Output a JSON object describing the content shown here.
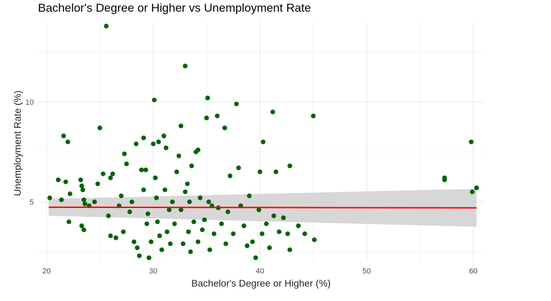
{
  "chart_data": {
    "type": "scatter",
    "title": "Bachelor's Degree or Higher vs Unemployment Rate",
    "xlabel": "Bachelor's Degree or Higher (%)",
    "ylabel": "Unemployment Rate (%)",
    "xlim": [
      19.2,
      61.0
    ],
    "ylim": [
      2.0,
      14.0
    ],
    "x_ticks": [
      20,
      30,
      40,
      50,
      60
    ],
    "x_tick_labels": [
      "20",
      "30",
      "40",
      "50",
      "60"
    ],
    "y_ticks": [
      5,
      10
    ],
    "y_tick_labels": [
      "5",
      "10"
    ],
    "grid": true,
    "legend": "none",
    "colors": {
      "points": "#006400",
      "trend": "#ff0000",
      "band": "#d3d3d3",
      "grid": "#ebebeb"
    },
    "trend": {
      "x": [
        20.2,
        60.3
      ],
      "y": [
        4.73,
        4.7
      ],
      "ci_lower_at_ends": [
        4.3,
        3.75
      ],
      "ci_upper_at_ends": [
        5.15,
        5.65
      ]
    },
    "points": [
      {
        "x": 20.3,
        "y": 5.2
      },
      {
        "x": 21.1,
        "y": 6.1
      },
      {
        "x": 21.6,
        "y": 8.3
      },
      {
        "x": 22.0,
        "y": 8.0
      },
      {
        "x": 21.8,
        "y": 6.0
      },
      {
        "x": 22.2,
        "y": 5.4
      },
      {
        "x": 21.4,
        "y": 5.1
      },
      {
        "x": 22.1,
        "y": 4.0
      },
      {
        "x": 23.2,
        "y": 6.1
      },
      {
        "x": 23.3,
        "y": 5.8
      },
      {
        "x": 23.4,
        "y": 5.6
      },
      {
        "x": 23.5,
        "y": 5.1
      },
      {
        "x": 23.3,
        "y": 3.8
      },
      {
        "x": 23.5,
        "y": 3.6
      },
      {
        "x": 23.6,
        "y": 4.9
      },
      {
        "x": 24.0,
        "y": 4.8
      },
      {
        "x": 24.5,
        "y": 5.0
      },
      {
        "x": 24.8,
        "y": 5.9
      },
      {
        "x": 25.0,
        "y": 8.7
      },
      {
        "x": 25.3,
        "y": 6.4
      },
      {
        "x": 25.6,
        "y": 13.8
      },
      {
        "x": 26.0,
        "y": 6.2
      },
      {
        "x": 26.2,
        "y": 6.4
      },
      {
        "x": 25.8,
        "y": 4.3
      },
      {
        "x": 26.0,
        "y": 3.3
      },
      {
        "x": 26.5,
        "y": 3.2
      },
      {
        "x": 26.8,
        "y": 4.8
      },
      {
        "x": 27.0,
        "y": 5.3
      },
      {
        "x": 27.2,
        "y": 3.5
      },
      {
        "x": 27.3,
        "y": 7.4
      },
      {
        "x": 27.5,
        "y": 6.9
      },
      {
        "x": 27.8,
        "y": 4.5
      },
      {
        "x": 28.0,
        "y": 5.0
      },
      {
        "x": 28.2,
        "y": 3.0
      },
      {
        "x": 28.5,
        "y": 2.7
      },
      {
        "x": 28.4,
        "y": 7.9
      },
      {
        "x": 28.7,
        "y": 2.3
      },
      {
        "x": 28.9,
        "y": 6.6
      },
      {
        "x": 29.1,
        "y": 5.6
      },
      {
        "x": 29.1,
        "y": 8.2
      },
      {
        "x": 29.3,
        "y": 6.6
      },
      {
        "x": 29.4,
        "y": 3.9
      },
      {
        "x": 29.5,
        "y": 4.4
      },
      {
        "x": 29.6,
        "y": 2.2
      },
      {
        "x": 29.8,
        "y": 3.0
      },
      {
        "x": 30.0,
        "y": 7.9
      },
      {
        "x": 30.1,
        "y": 10.1
      },
      {
        "x": 30.2,
        "y": 6.2
      },
      {
        "x": 30.3,
        "y": 5.2
      },
      {
        "x": 30.4,
        "y": 4.0
      },
      {
        "x": 30.5,
        "y": 8.0
      },
      {
        "x": 30.6,
        "y": 3.3
      },
      {
        "x": 30.8,
        "y": 2.6
      },
      {
        "x": 31.0,
        "y": 8.3
      },
      {
        "x": 31.1,
        "y": 5.6
      },
      {
        "x": 31.2,
        "y": 7.7
      },
      {
        "x": 31.3,
        "y": 3.5
      },
      {
        "x": 31.5,
        "y": 4.6
      },
      {
        "x": 31.6,
        "y": 2.9
      },
      {
        "x": 31.8,
        "y": 5.0
      },
      {
        "x": 32.0,
        "y": 3.9
      },
      {
        "x": 32.2,
        "y": 6.5
      },
      {
        "x": 32.4,
        "y": 7.3
      },
      {
        "x": 32.6,
        "y": 8.8
      },
      {
        "x": 32.6,
        "y": 4.6
      },
      {
        "x": 32.8,
        "y": 2.9
      },
      {
        "x": 33.0,
        "y": 5.5
      },
      {
        "x": 33.0,
        "y": 11.8
      },
      {
        "x": 33.2,
        "y": 5.9
      },
      {
        "x": 33.3,
        "y": 3.5
      },
      {
        "x": 33.4,
        "y": 5.0
      },
      {
        "x": 33.5,
        "y": 2.5
      },
      {
        "x": 33.6,
        "y": 6.8
      },
      {
        "x": 33.8,
        "y": 4.0
      },
      {
        "x": 34.0,
        "y": 7.5
      },
      {
        "x": 34.2,
        "y": 7.6
      },
      {
        "x": 34.2,
        "y": 3.0
      },
      {
        "x": 34.4,
        "y": 5.2
      },
      {
        "x": 34.6,
        "y": 3.6
      },
      {
        "x": 34.8,
        "y": 4.1
      },
      {
        "x": 35.0,
        "y": 9.2
      },
      {
        "x": 35.1,
        "y": 10.2
      },
      {
        "x": 35.2,
        "y": 5.0
      },
      {
        "x": 35.3,
        "y": 2.6
      },
      {
        "x": 35.5,
        "y": 4.8
      },
      {
        "x": 35.7,
        "y": 3.4
      },
      {
        "x": 36.0,
        "y": 9.3
      },
      {
        "x": 36.1,
        "y": 4.7
      },
      {
        "x": 36.4,
        "y": 3.9
      },
      {
        "x": 36.7,
        "y": 8.7
      },
      {
        "x": 36.8,
        "y": 2.9
      },
      {
        "x": 37.0,
        "y": 4.5
      },
      {
        "x": 37.2,
        "y": 6.3
      },
      {
        "x": 37.5,
        "y": 3.4
      },
      {
        "x": 37.8,
        "y": 9.9
      },
      {
        "x": 38.0,
        "y": 6.7
      },
      {
        "x": 38.2,
        "y": 4.8
      },
      {
        "x": 38.5,
        "y": 3.8
      },
      {
        "x": 38.8,
        "y": 2.8
      },
      {
        "x": 39.0,
        "y": 5.3
      },
      {
        "x": 39.3,
        "y": 3.0
      },
      {
        "x": 39.6,
        "y": 2.2
      },
      {
        "x": 39.9,
        "y": 4.6
      },
      {
        "x": 40.0,
        "y": 6.5
      },
      {
        "x": 40.2,
        "y": 3.4
      },
      {
        "x": 40.3,
        "y": 8.0
      },
      {
        "x": 40.6,
        "y": 3.9
      },
      {
        "x": 40.9,
        "y": 2.7
      },
      {
        "x": 41.2,
        "y": 9.5
      },
      {
        "x": 41.3,
        "y": 4.3
      },
      {
        "x": 41.5,
        "y": 6.5
      },
      {
        "x": 41.8,
        "y": 3.5
      },
      {
        "x": 42.2,
        "y": 4.2
      },
      {
        "x": 42.6,
        "y": 3.4
      },
      {
        "x": 42.8,
        "y": 6.8
      },
      {
        "x": 42.8,
        "y": 2.6
      },
      {
        "x": 43.6,
        "y": 3.8
      },
      {
        "x": 44.2,
        "y": 3.4
      },
      {
        "x": 45.0,
        "y": 9.3
      },
      {
        "x": 45.1,
        "y": 3.1
      },
      {
        "x": 57.3,
        "y": 6.2
      },
      {
        "x": 57.3,
        "y": 6.1
      },
      {
        "x": 59.8,
        "y": 8.0
      },
      {
        "x": 59.9,
        "y": 5.5
      },
      {
        "x": 60.3,
        "y": 5.7
      }
    ]
  }
}
